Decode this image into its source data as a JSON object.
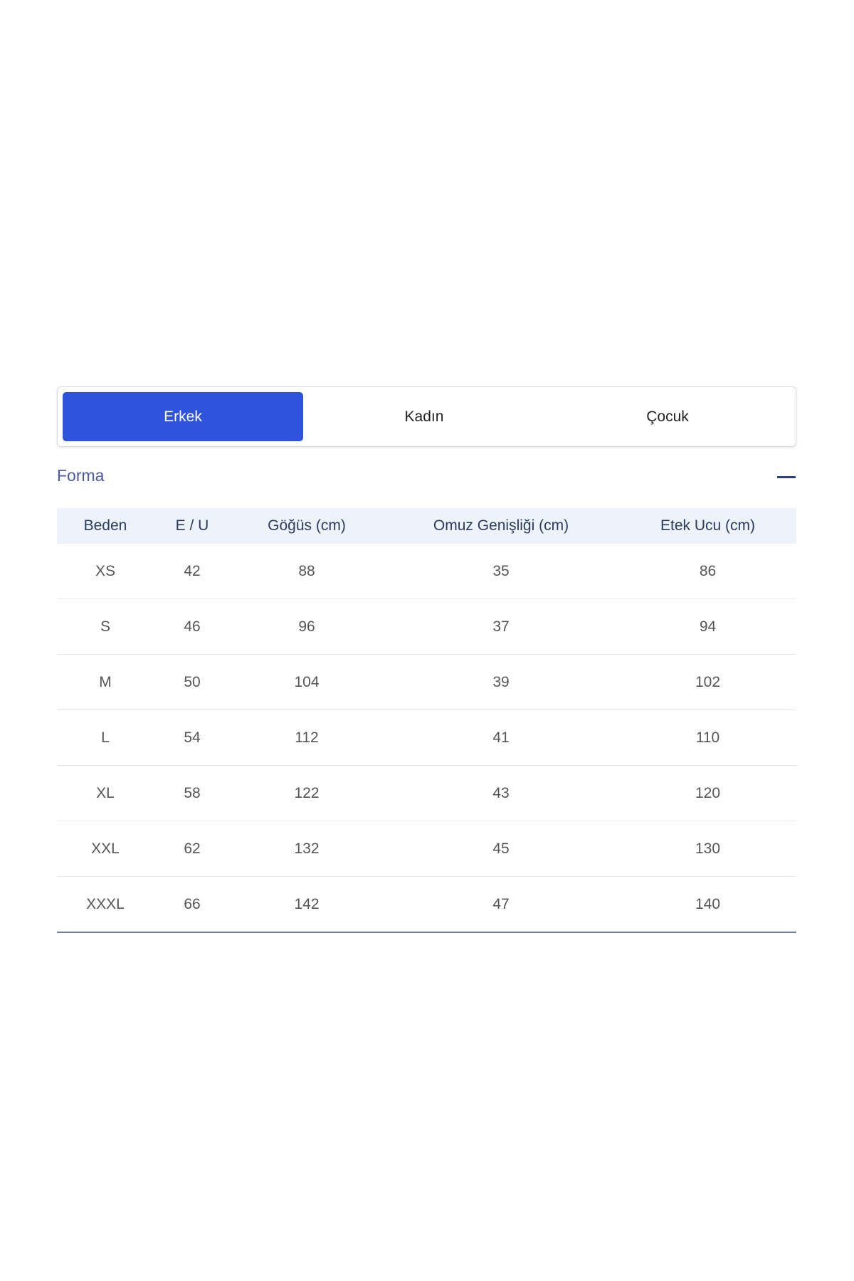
{
  "tabs": [
    {
      "label": "Erkek",
      "active": true
    },
    {
      "label": "Kadın",
      "active": false
    },
    {
      "label": "Çocuk",
      "active": false
    }
  ],
  "section": {
    "title": "Forma",
    "collapse_icon": "minus-icon"
  },
  "colors": {
    "accent": "#2f54dc",
    "header_bg": "#eef3fb"
  },
  "table": {
    "headers": [
      "Beden",
      "E / U",
      "Göğüs (cm)",
      "Omuz Genişliği (cm)",
      "Etek Ucu (cm)"
    ],
    "rows": [
      [
        "XS",
        "42",
        "88",
        "35",
        "86"
      ],
      [
        "S",
        "46",
        "96",
        "37",
        "94"
      ],
      [
        "M",
        "50",
        "104",
        "39",
        "102"
      ],
      [
        "L",
        "54",
        "112",
        "41",
        "110"
      ],
      [
        "XL",
        "58",
        "122",
        "43",
        "120"
      ],
      [
        "XXL",
        "62",
        "132",
        "45",
        "130"
      ],
      [
        "XXXL",
        "66",
        "142",
        "47",
        "140"
      ]
    ]
  }
}
